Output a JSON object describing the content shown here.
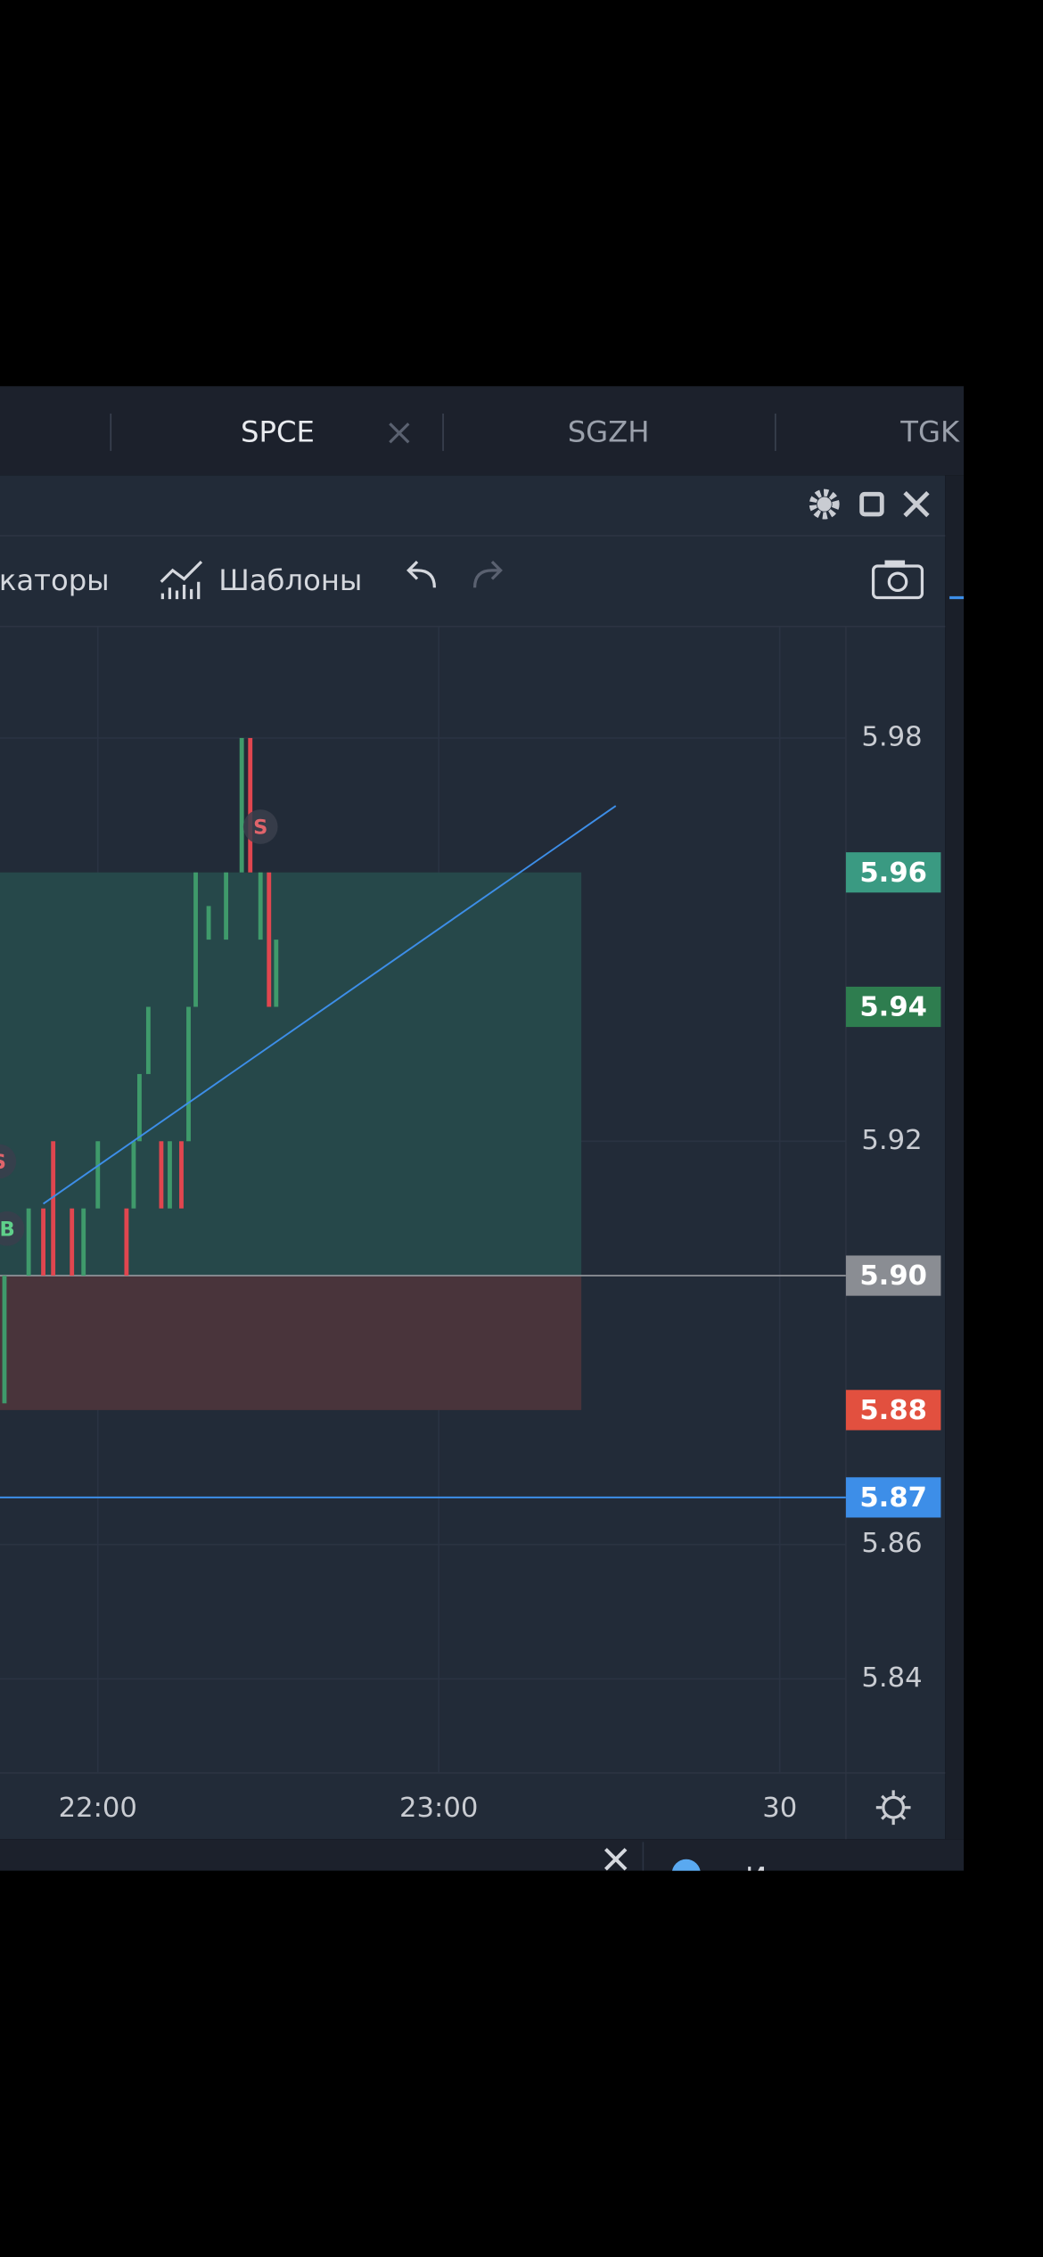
{
  "tabs": [
    "SPCE",
    "SGZH",
    "TGK"
  ],
  "toolbar": {
    "indicators": "Индикаторы",
    "templates": "Шаблоны"
  },
  "bottom_panel": {
    "tools": "Инструменты"
  },
  "chart_data": {
    "type": "candlestick",
    "x": [
      21.726,
      21.797,
      21.84,
      21.869,
      21.924,
      21.958,
      22.0,
      22.084,
      22.105,
      22.122,
      22.148,
      22.186,
      22.211,
      22.245,
      22.266,
      22.287,
      22.325,
      22.376,
      22.422,
      22.447,
      22.477,
      22.502,
      22.523
    ],
    "open": [
      5.881,
      5.9,
      5.91,
      5.92,
      5.91,
      5.9,
      5.91,
      5.91,
      5.91,
      5.92,
      5.93,
      5.92,
      5.91,
      5.92,
      5.92,
      5.94,
      5.95,
      5.95,
      5.96,
      5.98,
      5.95,
      5.96,
      5.94
    ],
    "close": [
      5.9,
      5.91,
      5.9,
      5.9,
      5.9,
      5.91,
      5.92,
      5.9,
      5.92,
      5.93,
      5.94,
      5.91,
      5.92,
      5.91,
      5.94,
      5.96,
      5.955,
      5.96,
      5.98,
      5.96,
      5.96,
      5.94,
      5.95
    ],
    "up_color": "#3f9a6b",
    "down_color": "#e0464f",
    "xlim": [
      21.713,
      24.194
    ],
    "xticks": [
      {
        "value": 22,
        "label": "22:00"
      },
      {
        "value": 23,
        "label": "23:00"
      },
      {
        "value": 24,
        "label": "30"
      }
    ],
    "ylim": [
      5.826,
      5.9966
    ],
    "yticks": [
      5.84,
      5.86,
      5.92,
      5.98
    ],
    "grid": true,
    "levels": [
      {
        "value": 5.96,
        "color": "#3a9a82",
        "line": false
      },
      {
        "value": 5.94,
        "color": "#2e7d4f",
        "line": false
      },
      {
        "value": 5.9,
        "label": "5.90",
        "color": "#8a8d93",
        "line": true
      },
      {
        "value": 5.88,
        "color": "#e2503f",
        "line": false
      },
      {
        "value": 5.867,
        "label": "5.87",
        "color": "#3d8ee8",
        "line": true
      }
    ],
    "zones": [
      {
        "from": 5.9,
        "to": 5.96,
        "x_end": 23.418,
        "color": "#26484a"
      },
      {
        "from": 5.88,
        "to": 5.9,
        "x_end": 23.418,
        "color": "#49343b"
      }
    ],
    "trend_line": {
      "x": [
        21.84,
        23.519
      ],
      "y": [
        5.9107,
        5.9699
      ],
      "color": "#3d8ee8"
    },
    "markers": [
      {
        "label": "S",
        "x": 22.477,
        "y": 5.9668,
        "color": "#e0646b"
      },
      {
        "label": "S",
        "x": 21.71,
        "y": 5.917,
        "color": "#e0646b"
      },
      {
        "label": "B",
        "x": 21.734,
        "y": 5.907,
        "color": "#5fd08a"
      }
    ]
  }
}
